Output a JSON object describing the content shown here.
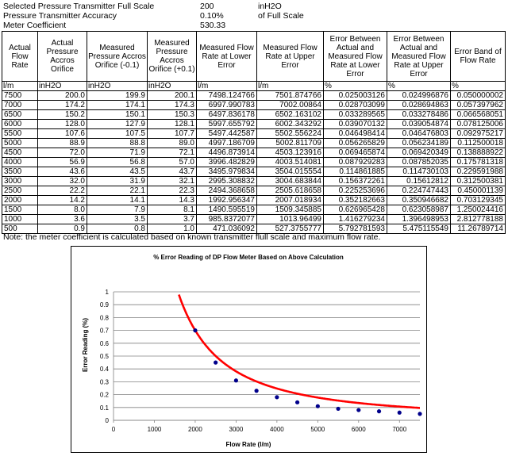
{
  "params": [
    {
      "label": "Selected Pressure Transmitter Full Scale",
      "value": "200",
      "unit": "inH2O"
    },
    {
      "label": "Pressure Transmitter Accuracy",
      "value": "0.10%",
      "unit": "of Full Scale"
    },
    {
      "label": "Meter Coefficient",
      "value": "530.33",
      "unit": ""
    }
  ],
  "table": {
    "headers": [
      "Actual Flow Rate",
      "Actual Pressure Accros Orifice",
      "Measured Pressure Accros Orifice (-0.1)",
      "Measured Pressure Accros Orifice (+0.1)",
      "Measured Flow Rate at Lower Error",
      "Measured Flow Rate at Upper Error",
      "Error Between Actual and Measured Flow Rate at Lower Error",
      "Error Between Actual and Measured Flow Rate at Upper Error",
      "Error Band of Flow Rate"
    ],
    "units": [
      "l/m",
      "inH2O",
      "inH2O",
      "inH2O",
      "l/m",
      "l/m",
      "%",
      "%",
      "%"
    ],
    "rows": [
      [
        "7500",
        "200.0",
        "199.9",
        "200.1",
        "7498.124766",
        "7501.874766",
        "0.025003126",
        "0.024996876",
        "0.050000002"
      ],
      [
        "7000",
        "174.2",
        "174.1",
        "174.3",
        "6997.990783",
        "7002.00864",
        "0.028703099",
        "0.028694863",
        "0.057397962"
      ],
      [
        "6500",
        "150.2",
        "150.1",
        "150.3",
        "6497.836178",
        "6502.163102",
        "0.033289565",
        "0.033278486",
        "0.066568051"
      ],
      [
        "6000",
        "128.0",
        "127.9",
        "128.1",
        "5997.655792",
        "6002.343292",
        "0.039070132",
        "0.039054874",
        "0.078125006"
      ],
      [
        "5500",
        "107.6",
        "107.5",
        "107.7",
        "5497.442587",
        "5502.556224",
        "0.046498414",
        "0.046476803",
        "0.092975217"
      ],
      [
        "5000",
        "88.9",
        "88.8",
        "89.0",
        "4997.186709",
        "5002.811709",
        "0.056265829",
        "0.056234189",
        "0.112500018"
      ],
      [
        "4500",
        "72.0",
        "71.9",
        "72.1",
        "4496.873914",
        "4503.123916",
        "0.069465874",
        "0.069420349",
        "0.138888922"
      ],
      [
        "4000",
        "56.9",
        "56.8",
        "57.0",
        "3996.482829",
        "4003.514081",
        "0.087929283",
        "0.087852035",
        "0.175781318"
      ],
      [
        "3500",
        "43.6",
        "43.5",
        "43.7",
        "3495.979834",
        "3504.015554",
        "0.114861885",
        "0.114730103",
        "0.229591988"
      ],
      [
        "3000",
        "32.0",
        "31.9",
        "32.1",
        "2995.308832",
        "3004.683844",
        "0.156372261",
        "0.15612812",
        "0.312500381"
      ],
      [
        "2500",
        "22.2",
        "22.1",
        "22.3",
        "2494.368658",
        "2505.618658",
        "0.225253696",
        "0.224747443",
        "0.450001139"
      ],
      [
        "2000",
        "14.2",
        "14.1",
        "14.3",
        "1992.956347",
        "2007.018934",
        "0.352182663",
        "0.350946682",
        "0.703129345"
      ],
      [
        "1500",
        "8.0",
        "7.9",
        "8.1",
        "1490.595519",
        "1509.345885",
        "0.626965428",
        "0.623058987",
        "1.250024416"
      ],
      [
        "1000",
        "3.6",
        "3.5",
        "3.7",
        "985.8372077",
        "1013.96499",
        "1.416279234",
        "1.396498953",
        "2.812778188"
      ],
      [
        "500",
        "0.9",
        "0.8",
        "1.0",
        "471.036092",
        "527.3755777",
        "5.792781593",
        "5.475115549",
        "11.26789714"
      ]
    ]
  },
  "note": "Note: the meter coefficient is calculated based on known transmitter flull scale and maximum flow rate.",
  "chart_data": {
    "type": "line",
    "title": "% Error Reading of DP Flow Meter Based on Above Calculation",
    "xlabel": "Flow Rate (l/m)",
    "ylabel": "Error Reading (%)",
    "xlim": [
      0,
      7500
    ],
    "ylim": [
      0,
      1
    ],
    "xticks": [
      0,
      1000,
      2000,
      3000,
      4000,
      5000,
      6000,
      7000
    ],
    "yticks": [
      0,
      0.1,
      0.2,
      0.3,
      0.4,
      0.5,
      0.6,
      0.7,
      0.8,
      0.9,
      1
    ],
    "grid": true,
    "line_color": "#ff0000",
    "marker_color": "#00008b",
    "x": [
      2000,
      2500,
      3000,
      3500,
      4000,
      4500,
      5000,
      5500,
      6000,
      6500,
      7000,
      7500
    ],
    "y": [
      0.7,
      0.45,
      0.31,
      0.23,
      0.18,
      0.14,
      0.11,
      0.09,
      0.08,
      0.07,
      0.06,
      0.05
    ]
  }
}
